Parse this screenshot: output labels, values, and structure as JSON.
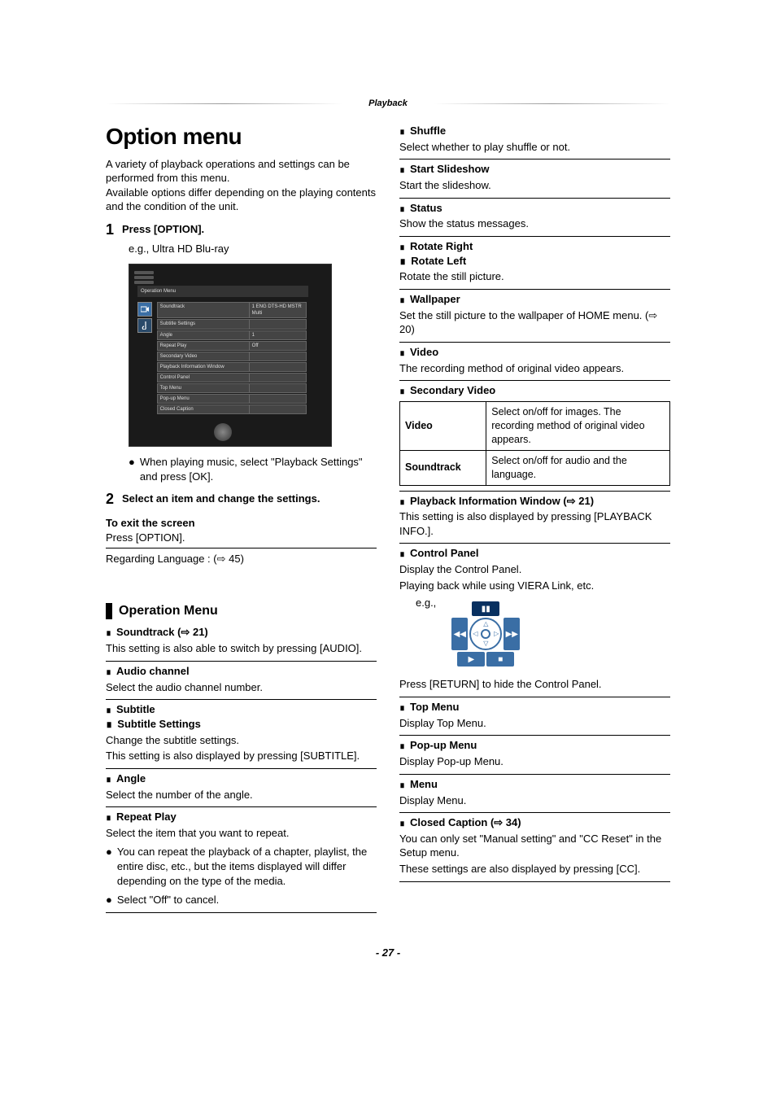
{
  "header_category": "Playback",
  "title": "Option menu",
  "intro_p1": "A variety of playback operations and settings can be performed from this menu.",
  "intro_p2": "Available options differ depending on the playing contents and the condition of the unit.",
  "steps": {
    "s1": {
      "num": "1",
      "title": "Press [OPTION].",
      "eg": "e.g., Ultra HD Blu-ray"
    },
    "s1_bullet": "When playing music, select \"Playback Settings\" and press [OK].",
    "s2": {
      "num": "2",
      "title": "Select an item and change the settings."
    }
  },
  "exit": {
    "h": "To exit the screen",
    "p": "Press [OPTION]."
  },
  "lang_note": "Regarding Language : (⇨ 45)",
  "operation_menu_title": "Operation Menu",
  "screenshot_menu": {
    "title": "Operation Menu",
    "rows": [
      {
        "l": "Soundtrack",
        "r": "1 ENG DTS-HD MSTR Multi"
      },
      {
        "l": "Subtitle Settings",
        "r": ""
      },
      {
        "l": "Angle",
        "r": "1"
      },
      {
        "l": "Repeat Play",
        "r": "Off"
      },
      {
        "l": "Secondary Video",
        "r": ""
      },
      {
        "l": "Playback Information Window",
        "r": ""
      },
      {
        "l": "Control Panel",
        "r": ""
      },
      {
        "l": "Top Menu",
        "r": ""
      },
      {
        "l": "Pop-up Menu",
        "r": ""
      },
      {
        "l": "Closed Caption",
        "r": ""
      }
    ]
  },
  "left_items": {
    "soundtrack": {
      "h": "Soundtrack (⇨ 21)",
      "p": "This setting is also able to switch by pressing [AUDIO]."
    },
    "audio_channel": {
      "h": "Audio channel",
      "p": "Select the audio channel number."
    },
    "subtitle": {
      "h1": "Subtitle",
      "h2": "Subtitle Settings",
      "p1": "Change the subtitle settings.",
      "p2": "This setting is also displayed by pressing [SUBTITLE]."
    },
    "angle": {
      "h": "Angle",
      "p": "Select the number of the angle."
    },
    "repeat": {
      "h": "Repeat Play",
      "p": "Select the item that you want to repeat.",
      "b1": "You can repeat the playback of a chapter, playlist, the entire disc, etc., but the items displayed will differ depending on the type of the media.",
      "b2": "Select \"Off\" to cancel."
    }
  },
  "right_items": {
    "shuffle": {
      "h": "Shuffle",
      "p": "Select whether to play shuffle or not."
    },
    "start_slideshow": {
      "h": "Start Slideshow",
      "p": "Start the slideshow."
    },
    "status": {
      "h": "Status",
      "p": "Show the status messages."
    },
    "rotate": {
      "h1": "Rotate Right",
      "h2": "Rotate Left",
      "p": "Rotate the still picture."
    },
    "wallpaper": {
      "h": "Wallpaper",
      "p": "Set the still picture to the wallpaper of HOME menu. (⇨ 20)"
    },
    "video": {
      "h": "Video",
      "p": "The recording method of original video appears."
    },
    "secondary_video": {
      "h": "Secondary Video",
      "table": {
        "r1l": "Video",
        "r1r": "Select on/off for images. The recording method of original video appears.",
        "r2l": "Soundtrack",
        "r2r": "Select on/off for audio and the language."
      }
    },
    "playback_info": {
      "h": "Playback Information Window (⇨ 21)",
      "p": "This setting is also displayed by pressing [PLAYBACK INFO.]."
    },
    "control_panel": {
      "h": "Control Panel",
      "p1": "Display the Control Panel.",
      "p2": "Playing back while using VIERA Link, etc.",
      "eg": "e.g.,",
      "p3": "Press [RETURN] to hide the Control Panel."
    },
    "top_menu": {
      "h": "Top Menu",
      "p": "Display Top Menu."
    },
    "popup_menu": {
      "h": "Pop-up Menu",
      "p": "Display Pop-up Menu."
    },
    "menu": {
      "h": "Menu",
      "p": "Display Menu."
    },
    "closed_caption": {
      "h": "Closed Caption (⇨ 34)",
      "p1": "You can only set \"Manual setting\" and \"CC Reset\" in the Setup menu.",
      "p2": "These settings are also displayed by pressing [CC]."
    }
  },
  "style": {
    "colors": {
      "text": "#000000",
      "bg": "#ffffff",
      "accent_blue": "#3a6ea5",
      "dark_blue": "#083060",
      "screenshot_bg": "#1a1a1a"
    },
    "fontsizes": {
      "title": 28,
      "section": 16,
      "body": 13,
      "screenshot": 6
    }
  },
  "page_number": "- 27 -"
}
